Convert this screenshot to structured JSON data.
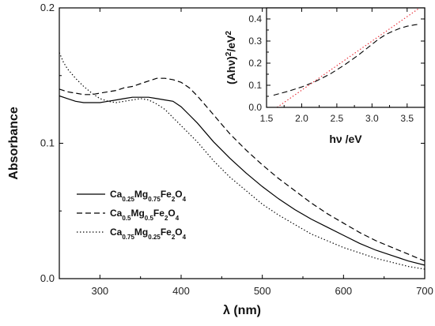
{
  "chart_data": [
    {
      "type": "line",
      "xlabel": "λ (nm)",
      "ylabel": "Absorbance",
      "xlim": [
        250,
        700
      ],
      "ylim": [
        0,
        0.2
      ],
      "x_ticks": [
        {
          "v": 300,
          "label": "300"
        },
        {
          "v": 400,
          "label": "400"
        },
        {
          "v": 500,
          "label": "500"
        },
        {
          "v": 600,
          "label": "600"
        },
        {
          "v": 700,
          "label": "700"
        }
      ],
      "y_ticks": [
        {
          "v": 0.0,
          "label": "0.0"
        },
        {
          "v": 0.1,
          "label": "0.1"
        },
        {
          "v": 0.2,
          "label": "0.2"
        }
      ],
      "legend": {
        "placement": "lower-left",
        "entries": [
          {
            "parts": [
              [
                "Ca",
                ""
              ],
              [
                "0.25",
                "sub"
              ],
              [
                "Mg",
                ""
              ],
              [
                "0.75",
                "sub"
              ],
              [
                "Fe",
                ""
              ],
              [
                "2",
                "sub"
              ],
              [
                "O",
                ""
              ],
              [
                "4",
                "sub"
              ]
            ],
            "style": "solid"
          },
          {
            "parts": [
              [
                "Ca",
                ""
              ],
              [
                "0.5",
                "sub"
              ],
              [
                "Mg",
                ""
              ],
              [
                "0.5",
                "sub"
              ],
              [
                "Fe",
                ""
              ],
              [
                "2",
                "sub"
              ],
              [
                "O",
                ""
              ],
              [
                "4",
                "sub"
              ]
            ],
            "style": "dashed"
          },
          {
            "parts": [
              [
                "Ca",
                ""
              ],
              [
                "0.75",
                "sub"
              ],
              [
                "Mg",
                ""
              ],
              [
                "0.25",
                "sub"
              ],
              [
                "Fe",
                ""
              ],
              [
                "2",
                "sub"
              ],
              [
                "O",
                ""
              ],
              [
                "4",
                "sub"
              ]
            ],
            "style": "dotted"
          }
        ]
      },
      "series": [
        {
          "style": "solid",
          "color": "#000000",
          "x": [
            250,
            260,
            270,
            280,
            290,
            300,
            310,
            320,
            330,
            340,
            350,
            360,
            370,
            380,
            390,
            400,
            410,
            420,
            430,
            440,
            450,
            460,
            480,
            500,
            520,
            540,
            560,
            580,
            600,
            620,
            640,
            660,
            680,
            700
          ],
          "y": [
            0.135,
            0.133,
            0.131,
            0.13,
            0.13,
            0.13,
            0.131,
            0.132,
            0.133,
            0.134,
            0.134,
            0.134,
            0.133,
            0.132,
            0.131,
            0.127,
            0.121,
            0.115,
            0.108,
            0.101,
            0.095,
            0.089,
            0.078,
            0.068,
            0.059,
            0.051,
            0.044,
            0.038,
            0.032,
            0.026,
            0.021,
            0.017,
            0.013,
            0.01
          ]
        },
        {
          "style": "dashed",
          "color": "#000000",
          "x": [
            250,
            260,
            270,
            280,
            290,
            300,
            310,
            320,
            330,
            340,
            350,
            360,
            370,
            380,
            390,
            400,
            410,
            420,
            430,
            440,
            450,
            460,
            480,
            500,
            520,
            540,
            560,
            580,
            600,
            620,
            640,
            660,
            680,
            700
          ],
          "y": [
            0.14,
            0.138,
            0.137,
            0.136,
            0.136,
            0.137,
            0.138,
            0.139,
            0.141,
            0.142,
            0.144,
            0.146,
            0.148,
            0.148,
            0.147,
            0.145,
            0.141,
            0.135,
            0.128,
            0.121,
            0.114,
            0.107,
            0.095,
            0.084,
            0.074,
            0.065,
            0.056,
            0.048,
            0.041,
            0.034,
            0.028,
            0.023,
            0.018,
            0.013
          ]
        },
        {
          "style": "dotted",
          "color": "#000000",
          "x": [
            250,
            255,
            260,
            270,
            280,
            290,
            300,
            310,
            320,
            330,
            340,
            350,
            360,
            370,
            380,
            390,
            400,
            410,
            420,
            430,
            440,
            450,
            460,
            480,
            500,
            520,
            540,
            560,
            580,
            600,
            620,
            640,
            660,
            680,
            700
          ],
          "y": [
            0.167,
            0.16,
            0.155,
            0.148,
            0.142,
            0.137,
            0.133,
            0.131,
            0.13,
            0.131,
            0.132,
            0.133,
            0.132,
            0.129,
            0.125,
            0.119,
            0.113,
            0.107,
            0.101,
            0.094,
            0.087,
            0.081,
            0.075,
            0.065,
            0.055,
            0.047,
            0.04,
            0.033,
            0.028,
            0.023,
            0.019,
            0.015,
            0.012,
            0.009,
            0.007
          ]
        }
      ]
    },
    {
      "type": "line",
      "xlabel": "hν /eV",
      "ylabel": "(Ahν)²/eV²",
      "ylabel_parts": [
        [
          "(Ahν)",
          ""
        ],
        [
          "2",
          "sup"
        ],
        [
          "/eV",
          ""
        ],
        [
          "2",
          "sup"
        ]
      ],
      "xlim": [
        1.5,
        3.75
      ],
      "ylim": [
        0,
        0.45
      ],
      "x_ticks": [
        {
          "v": 1.5,
          "label": "1.5"
        },
        {
          "v": 2.0,
          "label": "2.0"
        },
        {
          "v": 2.5,
          "label": "2.5"
        },
        {
          "v": 3.0,
          "label": "3.0"
        },
        {
          "v": 3.5,
          "label": "3.5"
        }
      ],
      "y_ticks": [
        {
          "v": 0.0,
          "label": "0.0"
        },
        {
          "v": 0.1,
          "label": "0.1"
        },
        {
          "v": 0.2,
          "label": "0.2"
        },
        {
          "v": 0.3,
          "label": "0.3"
        },
        {
          "v": 0.4,
          "label": "0.4"
        }
      ],
      "series": [
        {
          "style": "dashed",
          "color": "#000000",
          "x": [
            1.6,
            1.8,
            2.0,
            2.2,
            2.4,
            2.6,
            2.8,
            3.0,
            3.1,
            3.2,
            3.3,
            3.4,
            3.5,
            3.6,
            3.65
          ],
          "y": [
            0.055,
            0.072,
            0.092,
            0.118,
            0.15,
            0.19,
            0.235,
            0.285,
            0.31,
            0.33,
            0.345,
            0.358,
            0.367,
            0.373,
            0.375
          ]
        },
        {
          "style": "dotted",
          "color": "#e8202a",
          "x": [
            1.65,
            3.7
          ],
          "y": [
            0.0,
            0.455
          ]
        }
      ]
    }
  ]
}
